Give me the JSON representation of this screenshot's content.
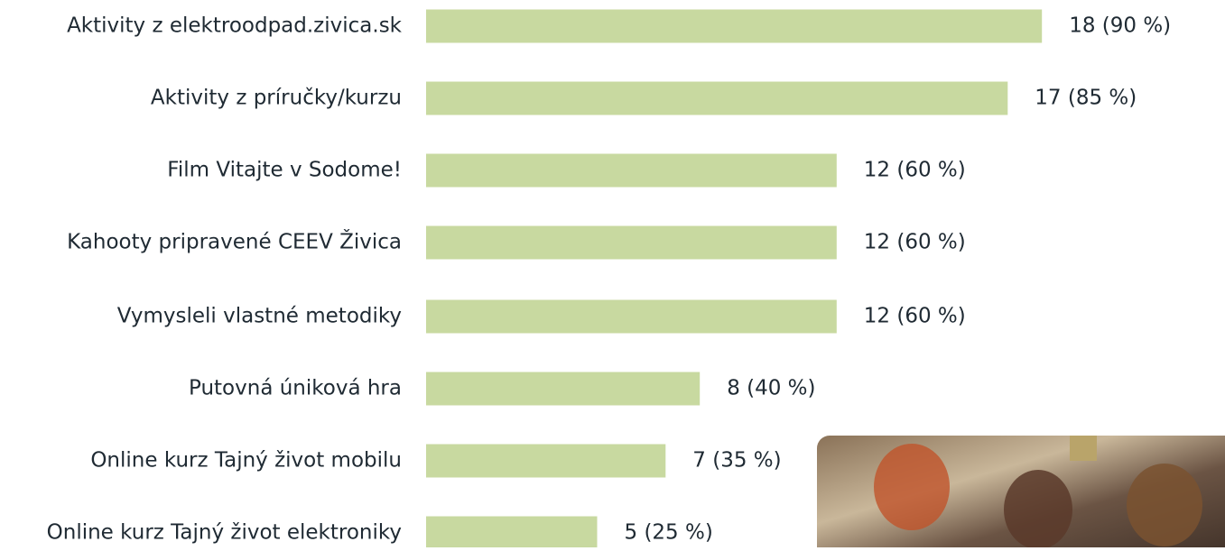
{
  "chart_data": {
    "type": "bar",
    "orientation": "horizontal",
    "categories": [
      "Aktivity z elektroodpad.zivica.sk",
      "Aktivity z príručky/kurzu",
      "Film Vitajte v Sodome!",
      "Kahooty pripravené CEEV Živica",
      "Vymysleli vlastné metodiky",
      "Putovná úniková hra",
      "Online kurz Tajný život mobilu",
      "Online kurz Tajný život elektroniky"
    ],
    "values": [
      18,
      17,
      12,
      12,
      12,
      8,
      7,
      5
    ],
    "value_labels": [
      "18 (90 %)",
      "17 (85 %)",
      "12 (60 %)",
      "12 (60 %)",
      "12 (60 %)",
      "8 (40 %)",
      "7 (35 %)",
      "5 (25 %)"
    ],
    "color": "#c8d9a0"
  }
}
